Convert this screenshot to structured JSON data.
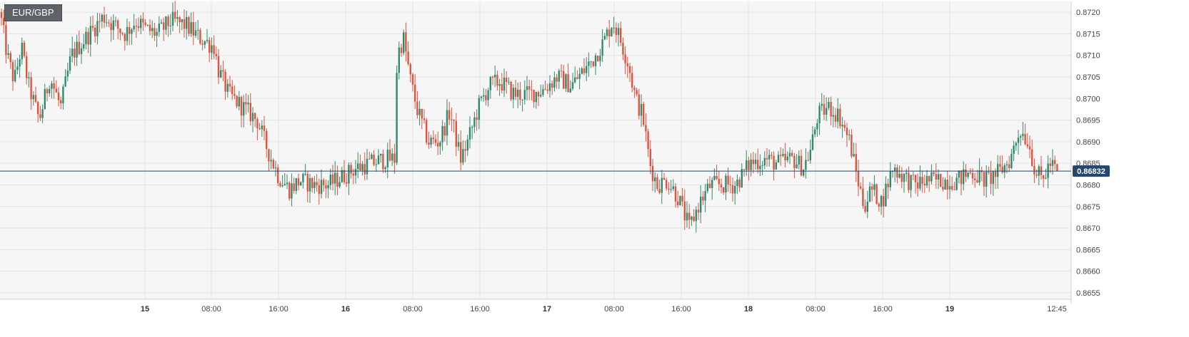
{
  "symbol": "EUR/GBP",
  "colors": {
    "up": "#2e8b6e",
    "down": "#e0533f",
    "current_line": "#27466e",
    "current_label_bg": "#27466e",
    "grid": "#e4e4e4",
    "plot_bg": "#f6f6f6"
  },
  "chart_data": {
    "type": "candlestick",
    "symbol": "EUR/GBP",
    "current_price": 0.86832,
    "current_price_label": "0.86832",
    "ylim": [
      0.86535,
      0.87225
    ],
    "y_ticks": [
      "0.8720",
      "0.8715",
      "0.8710",
      "0.8705",
      "0.8700",
      "0.8695",
      "0.8690",
      "0.8685",
      "0.8680",
      "0.8675",
      "0.8670",
      "0.8665",
      "0.8660",
      "0.8655"
    ],
    "x_ticks": [
      {
        "label": "15",
        "bold": true
      },
      {
        "label": "08:00",
        "bold": false
      },
      {
        "label": "16:00",
        "bold": false
      },
      {
        "label": "16",
        "bold": true
      },
      {
        "label": "08:00",
        "bold": false
      },
      {
        "label": "16:00",
        "bold": false
      },
      {
        "label": "17",
        "bold": true
      },
      {
        "label": "08:00",
        "bold": false
      },
      {
        "label": "16:00",
        "bold": false
      },
      {
        "label": "18",
        "bold": true
      },
      {
        "label": "08:00",
        "bold": false
      },
      {
        "label": "16:00",
        "bold": false
      },
      {
        "label": "19",
        "bold": true
      },
      {
        "label": "12:45",
        "bold": false
      }
    ],
    "close_series": [
      [
        0,
        0.872
      ],
      [
        10,
        0.871
      ],
      [
        20,
        0.8704
      ],
      [
        30,
        0.8712
      ],
      [
        40,
        0.8703
      ],
      [
        55,
        0.8695
      ],
      [
        70,
        0.8705
      ],
      [
        85,
        0.8698
      ],
      [
        100,
        0.871
      ],
      [
        115,
        0.8713
      ],
      [
        130,
        0.8716
      ],
      [
        145,
        0.8719
      ],
      [
        160,
        0.8717
      ],
      [
        175,
        0.8715
      ],
      [
        190,
        0.8718
      ],
      [
        205,
        0.8716
      ],
      [
        220,
        0.8715
      ],
      [
        240,
        0.8718
      ],
      [
        260,
        0.8717
      ],
      [
        280,
        0.8714
      ],
      [
        300,
        0.8712
      ],
      [
        305,
        0.8707
      ],
      [
        320,
        0.8701
      ],
      [
        340,
        0.8698
      ],
      [
        360,
        0.8695
      ],
      [
        375,
        0.8688
      ],
      [
        390,
        0.8682
      ],
      [
        405,
        0.8679
      ],
      [
        420,
        0.8681
      ],
      [
        440,
        0.868
      ],
      [
        460,
        0.868
      ],
      [
        480,
        0.8682
      ],
      [
        500,
        0.8684
      ],
      [
        520,
        0.8685
      ],
      [
        540,
        0.8686
      ],
      [
        553,
        0.8686
      ],
      [
        556,
        0.871
      ],
      [
        565,
        0.8714
      ],
      [
        575,
        0.8704
      ],
      [
        585,
        0.8697
      ],
      [
        600,
        0.869
      ],
      [
        615,
        0.869
      ],
      [
        630,
        0.8697
      ],
      [
        645,
        0.8686
      ],
      [
        655,
        0.869
      ],
      [
        670,
        0.8698
      ],
      [
        685,
        0.8703
      ],
      [
        700,
        0.8704
      ],
      [
        720,
        0.8701
      ],
      [
        740,
        0.8701
      ],
      [
        760,
        0.8702
      ],
      [
        780,
        0.8705
      ],
      [
        800,
        0.8703
      ],
      [
        815,
        0.8706
      ],
      [
        830,
        0.8709
      ],
      [
        845,
        0.8713
      ],
      [
        858,
        0.8718
      ],
      [
        868,
        0.8714
      ],
      [
        880,
        0.8708
      ],
      [
        890,
        0.87
      ],
      [
        900,
        0.8696
      ],
      [
        910,
        0.8685
      ],
      [
        920,
        0.868
      ],
      [
        935,
        0.8681
      ],
      [
        950,
        0.8677
      ],
      [
        965,
        0.867
      ],
      [
        980,
        0.8676
      ],
      [
        995,
        0.868
      ],
      [
        1010,
        0.868
      ],
      [
        1030,
        0.868
      ],
      [
        1050,
        0.8685
      ],
      [
        1070,
        0.8686
      ],
      [
        1090,
        0.8685
      ],
      [
        1110,
        0.8686
      ],
      [
        1125,
        0.8684
      ],
      [
        1135,
        0.8688
      ],
      [
        1145,
        0.8696
      ],
      [
        1160,
        0.8698
      ],
      [
        1175,
        0.8696
      ],
      [
        1190,
        0.869
      ],
      [
        1200,
        0.8682
      ],
      [
        1210,
        0.8675
      ],
      [
        1220,
        0.8679
      ],
      [
        1235,
        0.8676
      ],
      [
        1250,
        0.8684
      ],
      [
        1265,
        0.8682
      ],
      [
        1280,
        0.868
      ],
      [
        1300,
        0.8681
      ],
      [
        1320,
        0.8681
      ],
      [
        1340,
        0.8681
      ],
      [
        1360,
        0.8683
      ],
      [
        1380,
        0.8681
      ],
      [
        1400,
        0.8683
      ],
      [
        1415,
        0.8686
      ],
      [
        1428,
        0.8693
      ],
      [
        1440,
        0.869
      ],
      [
        1450,
        0.8683
      ],
      [
        1460,
        0.8681
      ],
      [
        1470,
        0.8685
      ],
      [
        1480,
        0.86832
      ]
    ]
  }
}
